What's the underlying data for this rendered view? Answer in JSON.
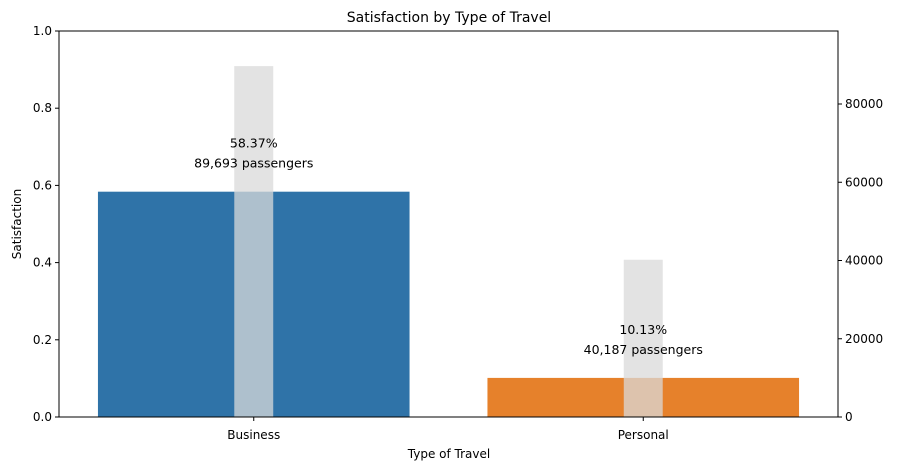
{
  "chart_data": {
    "type": "bar",
    "title": "Satisfaction by Type of Travel",
    "xlabel": "Type of Travel",
    "ylabel": "Satisfaction",
    "categories": [
      "Business",
      "Personal"
    ],
    "series": [
      {
        "axis": "left",
        "values": [
          0.5837,
          0.1013
        ],
        "colors": [
          "#2f73a8",
          "#e6812b"
        ],
        "labels": [
          "58.37%",
          "10.13%"
        ]
      },
      {
        "axis": "right",
        "values": [
          89693,
          40187
        ],
        "color": "#d9d9d9",
        "labels": [
          "89,693 passengers",
          "40,187 passengers"
        ]
      }
    ],
    "ylim": [
      0,
      1
    ],
    "yticks": [
      "0.0",
      "0.2",
      "0.4",
      "0.6",
      "0.8",
      "1.0"
    ],
    "y2lim": [
      0,
      98662
    ],
    "y2ticks": [
      "0",
      "20000",
      "40000",
      "60000",
      "80000"
    ],
    "grid": false,
    "legend": "none"
  }
}
